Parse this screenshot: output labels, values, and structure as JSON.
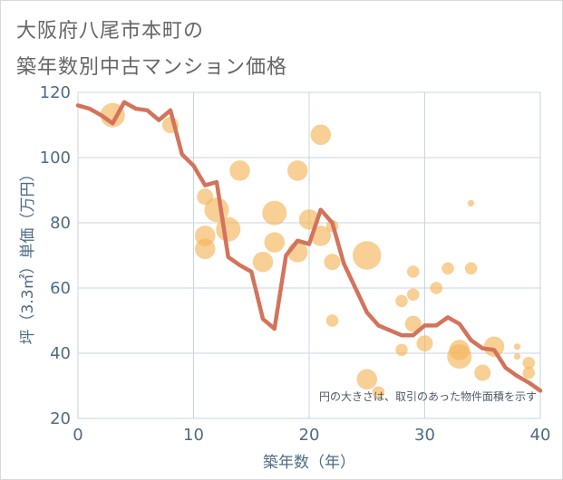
{
  "title_lines": [
    "大阪府八尾市本町の",
    "築年数別中古マンション価格"
  ],
  "chart_data": {
    "type": "scatter",
    "xlabel": "築年数（年）",
    "ylabel": "坪（3.3㎡）単価（万円）",
    "xlim": [
      0,
      40
    ],
    "ylim": [
      20,
      120
    ],
    "x_ticks": [
      0,
      10,
      20,
      30,
      40
    ],
    "y_ticks": [
      20,
      40,
      60,
      80,
      100,
      120
    ],
    "grid": true,
    "annotation": "円の大きさは、取引のあった物件面積を示す",
    "colors": {
      "bubble": "#f4b65a",
      "line": "#d4735c",
      "axis_text": "#4d6b85",
      "grid": "#c7d5e0"
    },
    "series": [
      {
        "kind": "bubbles",
        "points": [
          {
            "x": 3,
            "y": 113,
            "s": 3
          },
          {
            "x": 8,
            "y": 110,
            "s": 2
          },
          {
            "x": 11,
            "y": 88,
            "s": 2
          },
          {
            "x": 12,
            "y": 84,
            "s": 3
          },
          {
            "x": 13,
            "y": 78,
            "s": 3
          },
          {
            "x": 11,
            "y": 76,
            "s": 2.5
          },
          {
            "x": 11,
            "y": 72,
            "s": 2.5
          },
          {
            "x": 14,
            "y": 96,
            "s": 2.5
          },
          {
            "x": 16,
            "y": 68,
            "s": 2.5
          },
          {
            "x": 17,
            "y": 83,
            "s": 3
          },
          {
            "x": 17,
            "y": 74,
            "s": 2.5
          },
          {
            "x": 19,
            "y": 96,
            "s": 2.5
          },
          {
            "x": 19,
            "y": 71,
            "s": 2.5
          },
          {
            "x": 20,
            "y": 81,
            "s": 2.5
          },
          {
            "x": 21,
            "y": 107,
            "s": 2.5
          },
          {
            "x": 21,
            "y": 76,
            "s": 2.5
          },
          {
            "x": 22,
            "y": 79,
            "s": 1.5
          },
          {
            "x": 22,
            "y": 68,
            "s": 2
          },
          {
            "x": 22,
            "y": 50,
            "s": 1.5
          },
          {
            "x": 25,
            "y": 70,
            "s": 3.5
          },
          {
            "x": 25,
            "y": 32,
            "s": 2.5
          },
          {
            "x": 26,
            "y": 28,
            "s": 1.5
          },
          {
            "x": 28,
            "y": 56,
            "s": 1.5
          },
          {
            "x": 28,
            "y": 41,
            "s": 1.5
          },
          {
            "x": 29,
            "y": 65,
            "s": 1.5
          },
          {
            "x": 29,
            "y": 58,
            "s": 1.5
          },
          {
            "x": 29,
            "y": 49,
            "s": 2
          },
          {
            "x": 30,
            "y": 43,
            "s": 2
          },
          {
            "x": 31,
            "y": 60,
            "s": 1.5
          },
          {
            "x": 32,
            "y": 66,
            "s": 1.5
          },
          {
            "x": 33,
            "y": 39,
            "s": 3
          },
          {
            "x": 33,
            "y": 41,
            "s": 2.5
          },
          {
            "x": 34,
            "y": 86,
            "s": 0.8
          },
          {
            "x": 34,
            "y": 66,
            "s": 1.5
          },
          {
            "x": 35,
            "y": 34,
            "s": 2
          },
          {
            "x": 36,
            "y": 42,
            "s": 2.5
          },
          {
            "x": 38,
            "y": 42,
            "s": 0.8
          },
          {
            "x": 38,
            "y": 39,
            "s": 0.8
          },
          {
            "x": 39,
            "y": 37,
            "s": 1.5
          },
          {
            "x": 39,
            "y": 34,
            "s": 1.5
          }
        ]
      },
      {
        "kind": "line",
        "x": [
          0,
          1,
          2,
          3,
          4,
          5,
          6,
          7,
          8,
          9,
          10,
          11,
          12,
          13,
          14,
          15,
          16,
          17,
          18,
          19,
          20,
          21,
          22,
          23,
          24,
          25,
          26,
          27,
          28,
          29,
          30,
          31,
          32,
          33,
          34,
          35,
          36,
          37,
          38,
          39,
          40
        ],
        "y": [
          116,
          115,
          113,
          110.5,
          117,
          115,
          114.5,
          111.5,
          114.5,
          101,
          97.5,
          91.5,
          92.5,
          69.5,
          67,
          65,
          50.5,
          47.5,
          70,
          74.5,
          73.5,
          84,
          80,
          67.5,
          60,
          52.5,
          48.5,
          47,
          45.5,
          45.5,
          48.5,
          48.5,
          51,
          49,
          44,
          41.5,
          41,
          35.5,
          33,
          31,
          28.5
        ]
      }
    ]
  }
}
